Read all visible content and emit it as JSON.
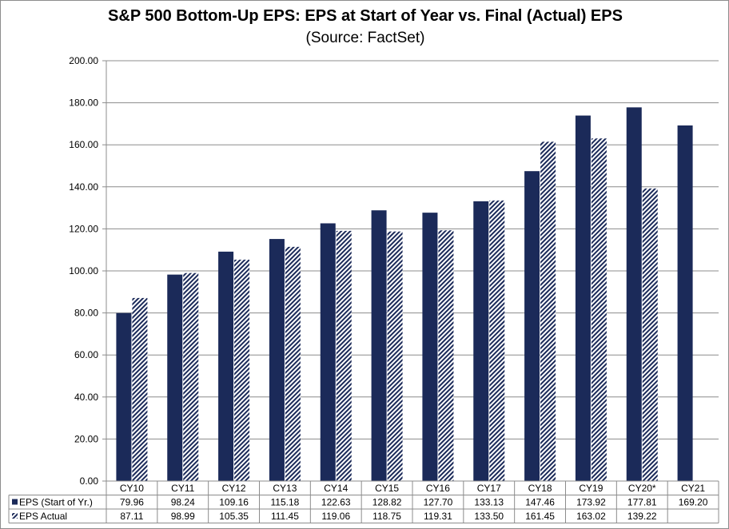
{
  "chart_data": {
    "type": "bar",
    "title": "S&P 500 Bottom-Up EPS: EPS at Start of Year vs. Final (Actual) EPS",
    "subtitle": "(Source: FactSet)",
    "categories": [
      "CY10",
      "CY11",
      "CY12",
      "CY13",
      "CY14",
      "CY15",
      "CY16",
      "CY17",
      "CY18",
      "CY19",
      "CY20*",
      "CY21"
    ],
    "series": [
      {
        "name": "EPS (Start of Yr.)",
        "values": [
          79.96,
          98.24,
          109.16,
          115.18,
          122.63,
          128.82,
          127.7,
          133.13,
          147.46,
          173.92,
          177.81,
          169.2
        ],
        "labels": [
          "79.96",
          "98.24",
          "109.16",
          "115.18",
          "122.63",
          "128.82",
          "127.70",
          "133.13",
          "147.46",
          "173.92",
          "177.81",
          "169.20"
        ],
        "color": "#1b2a59",
        "pattern": "solid"
      },
      {
        "name": "EPS Actual",
        "values": [
          87.11,
          98.99,
          105.35,
          111.45,
          119.06,
          118.75,
          119.31,
          133.5,
          161.45,
          163.02,
          139.22,
          null
        ],
        "labels": [
          "87.11",
          "98.99",
          "105.35",
          "111.45",
          "119.06",
          "118.75",
          "119.31",
          "133.50",
          "161.45",
          "163.02",
          "139.22",
          ""
        ],
        "color": "#1b2a59",
        "pattern": "diagonal-hatch"
      }
    ],
    "ylim": [
      0,
      200
    ],
    "yticks": [
      0,
      20,
      40,
      60,
      80,
      100,
      120,
      140,
      160,
      180,
      200
    ],
    "ytick_labels": [
      "0.00",
      "20.00",
      "40.00",
      "60.00",
      "80.00",
      "100.00",
      "120.00",
      "140.00",
      "160.00",
      "180.00",
      "200.00"
    ],
    "grid": true,
    "legend": "data-table"
  }
}
